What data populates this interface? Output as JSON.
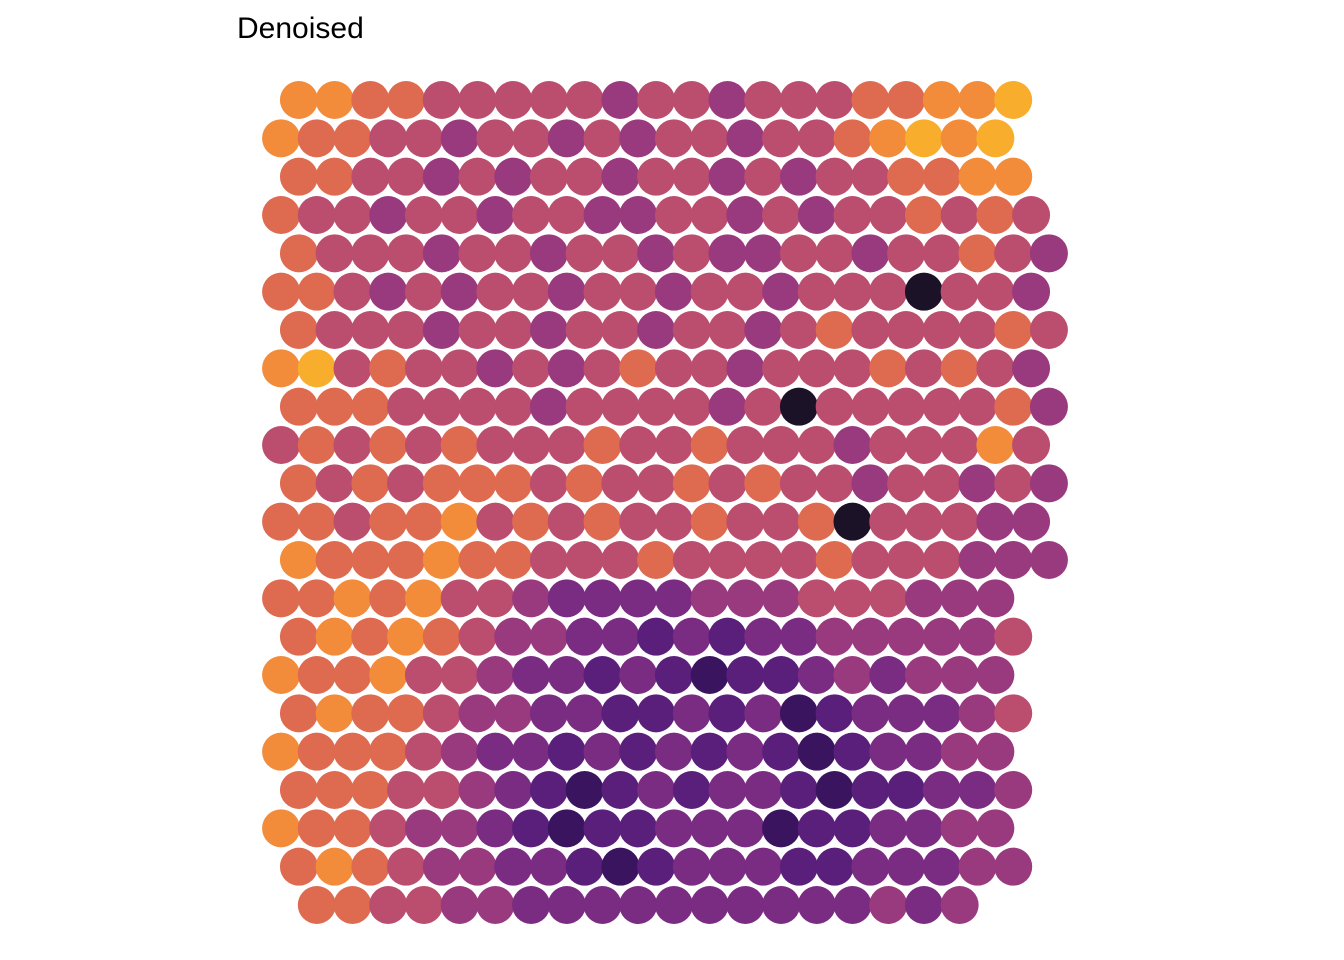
{
  "chart_data": {
    "type": "spatial",
    "title": "Denoised",
    "colors": [
      "#1b1228",
      "#3b1460",
      "#5a1f7a",
      "#7a2b82",
      "#9a3a7e",
      "#bb4d6e",
      "#de6a4f",
      "#f28b3a",
      "#f8ae2c",
      "#fbe46a"
    ],
    "values": [
      [
        7,
        7,
        6,
        6,
        5,
        5,
        5,
        5,
        5,
        4,
        5,
        5,
        4,
        5,
        5,
        5,
        6,
        6,
        7,
        7,
        8,
        null
      ],
      [
        7,
        6,
        6,
        5,
        5,
        4,
        5,
        5,
        4,
        5,
        4,
        5,
        5,
        4,
        5,
        5,
        6,
        7,
        8,
        7,
        8,
        null
      ],
      [
        6,
        6,
        5,
        5,
        4,
        5,
        4,
        5,
        5,
        4,
        5,
        5,
        4,
        5,
        4,
        5,
        5,
        6,
        6,
        7,
        7,
        null
      ],
      [
        6,
        5,
        5,
        4,
        5,
        5,
        4,
        5,
        5,
        4,
        4,
        5,
        5,
        4,
        5,
        4,
        5,
        5,
        6,
        5,
        6,
        5
      ],
      [
        6,
        5,
        5,
        5,
        4,
        5,
        5,
        4,
        5,
        5,
        4,
        5,
        4,
        4,
        5,
        5,
        4,
        5,
        5,
        6,
        5,
        4
      ],
      [
        6,
        6,
        5,
        4,
        5,
        4,
        5,
        5,
        4,
        5,
        5,
        4,
        5,
        5,
        4,
        5,
        5,
        5,
        0,
        5,
        5,
        4
      ],
      [
        6,
        5,
        5,
        5,
        4,
        5,
        5,
        4,
        5,
        5,
        4,
        5,
        5,
        4,
        5,
        6,
        5,
        5,
        5,
        5,
        6,
        5
      ],
      [
        7,
        8,
        5,
        6,
        5,
        5,
        4,
        5,
        4,
        5,
        6,
        5,
        5,
        4,
        5,
        5,
        5,
        6,
        5,
        6,
        5,
        4
      ],
      [
        6,
        6,
        6,
        5,
        5,
        5,
        5,
        4,
        5,
        5,
        5,
        5,
        4,
        5,
        0,
        5,
        5,
        5,
        5,
        5,
        6,
        4
      ],
      [
        5,
        6,
        5,
        6,
        5,
        6,
        5,
        5,
        5,
        6,
        5,
        5,
        6,
        5,
        5,
        5,
        4,
        5,
        5,
        5,
        7,
        5
      ],
      [
        6,
        5,
        6,
        5,
        6,
        6,
        6,
        5,
        6,
        5,
        5,
        6,
        5,
        6,
        5,
        5,
        4,
        5,
        5,
        4,
        5,
        4
      ],
      [
        6,
        6,
        5,
        6,
        6,
        7,
        5,
        6,
        5,
        6,
        5,
        5,
        6,
        5,
        5,
        6,
        0,
        5,
        5,
        5,
        4,
        4
      ],
      [
        7,
        6,
        6,
        6,
        7,
        6,
        6,
        5,
        5,
        5,
        6,
        5,
        5,
        5,
        5,
        6,
        5,
        5,
        5,
        4,
        4,
        4
      ],
      [
        6,
        6,
        7,
        6,
        7,
        5,
        5,
        4,
        3,
        3,
        3,
        3,
        4,
        4,
        4,
        5,
        5,
        5,
        4,
        4,
        4,
        null
      ],
      [
        6,
        7,
        6,
        7,
        6,
        5,
        4,
        4,
        3,
        3,
        2,
        3,
        2,
        3,
        3,
        4,
        4,
        4,
        4,
        4,
        5,
        null
      ],
      [
        7,
        6,
        6,
        7,
        5,
        5,
        4,
        3,
        3,
        2,
        3,
        2,
        1,
        2,
        2,
        3,
        4,
        3,
        4,
        4,
        4,
        null
      ],
      [
        6,
        7,
        6,
        6,
        5,
        4,
        4,
        3,
        3,
        2,
        2,
        3,
        2,
        3,
        1,
        2,
        3,
        3,
        3,
        4,
        5,
        null
      ],
      [
        7,
        6,
        6,
        6,
        5,
        4,
        3,
        3,
        2,
        3,
        2,
        3,
        2,
        3,
        2,
        1,
        2,
        3,
        3,
        4,
        4,
        null
      ],
      [
        6,
        6,
        6,
        5,
        5,
        4,
        3,
        2,
        1,
        2,
        3,
        2,
        3,
        3,
        2,
        1,
        2,
        2,
        3,
        3,
        4,
        null
      ],
      [
        7,
        6,
        6,
        5,
        4,
        4,
        3,
        2,
        1,
        2,
        2,
        3,
        3,
        3,
        1,
        2,
        2,
        3,
        3,
        4,
        4,
        null
      ],
      [
        6,
        7,
        6,
        5,
        4,
        4,
        3,
        3,
        2,
        1,
        2,
        3,
        3,
        3,
        2,
        2,
        3,
        3,
        3,
        4,
        4,
        null
      ],
      [
        null,
        6,
        6,
        5,
        5,
        4,
        4,
        3,
        3,
        3,
        3,
        3,
        3,
        3,
        3,
        3,
        3,
        4,
        3,
        4,
        null,
        null
      ]
    ]
  }
}
